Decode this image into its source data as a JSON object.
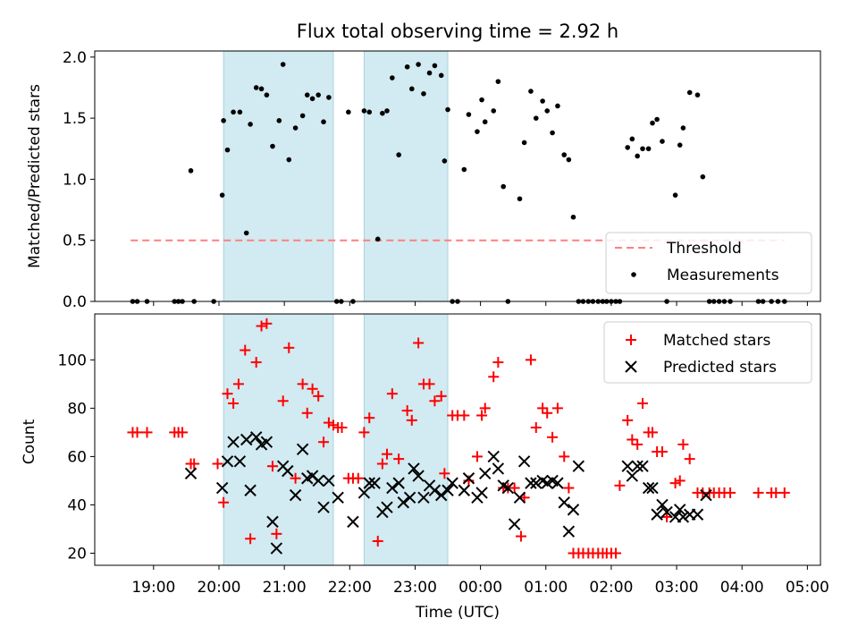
{
  "chart_data": [
    {
      "type": "scatter",
      "title": "Flux total observing time = 2.92 h",
      "xlabel": "",
      "ylabel": "Matched/Predicted stars",
      "xlim": [
        18.1,
        5.2
      ],
      "ylim": [
        0,
        2.05
      ],
      "yticks": [
        0.0,
        0.5,
        1.0,
        1.5,
        2.0
      ],
      "ytick_labels": [
        "0.0",
        "0.5",
        "1.0",
        "1.5",
        "2.0"
      ],
      "shaded_intervals_hours": [
        [
          20.07,
          21.75
        ],
        [
          22.22,
          23.5
        ]
      ],
      "threshold": 0.5,
      "threshold_range_hours": [
        18.65,
        4.65
      ],
      "legend": {
        "location": "lower-right",
        "entries": [
          "Threshold",
          "Measurements"
        ]
      },
      "series": [
        {
          "name": "Measurements",
          "x": [
            18.68,
            18.75,
            18.9,
            19.32,
            19.38,
            19.44,
            19.57,
            19.62,
            19.92,
            20.05,
            20.07,
            20.13,
            20.22,
            20.32,
            20.42,
            20.48,
            20.57,
            20.65,
            20.73,
            20.82,
            20.92,
            20.98,
            21.07,
            21.17,
            21.28,
            21.35,
            21.43,
            21.52,
            21.6,
            21.68,
            21.8,
            21.87,
            21.98,
            22.05,
            22.22,
            22.3,
            22.43,
            22.5,
            22.57,
            22.65,
            22.75,
            22.88,
            22.95,
            23.05,
            23.13,
            23.22,
            23.3,
            23.4,
            23.45,
            23.5,
            23.57,
            23.65,
            23.75,
            23.82,
            23.95,
            24.02,
            24.07,
            24.2,
            24.27,
            24.35,
            24.42,
            24.6,
            24.67,
            24.77,
            24.85,
            24.95,
            25.02,
            25.1,
            25.18,
            25.28,
            25.35,
            25.42,
            25.5,
            25.57,
            25.65,
            25.72,
            25.8,
            25.87,
            25.93,
            26.0,
            26.07,
            26.13,
            26.25,
            26.32,
            26.4,
            26.48,
            26.57,
            26.63,
            26.7,
            26.78,
            26.85,
            26.98,
            27.05,
            27.1,
            27.2,
            27.32,
            27.4,
            27.5,
            27.57,
            27.65,
            27.73,
            27.82,
            28.25,
            28.32,
            28.45,
            28.55,
            28.65
          ],
          "y": [
            0,
            0,
            0,
            0,
            0,
            0,
            1.07,
            0,
            0,
            0.87,
            1.48,
            1.24,
            1.55,
            1.55,
            0.56,
            1.45,
            1.75,
            1.74,
            1.69,
            1.27,
            1.48,
            1.94,
            1.16,
            1.42,
            1.52,
            1.69,
            1.66,
            1.69,
            1.47,
            1.67,
            0,
            0,
            1.55,
            0,
            1.56,
            1.55,
            0.51,
            1.54,
            1.56,
            1.83,
            1.2,
            1.92,
            1.74,
            1.94,
            1.7,
            1.87,
            1.93,
            1.85,
            1.15,
            1.57,
            0,
            0,
            1.08,
            1.53,
            1.39,
            1.65,
            1.47,
            1.56,
            1.8,
            0.94,
            0,
            0.84,
            1.3,
            1.72,
            1.5,
            1.64,
            1.56,
            1.38,
            1.6,
            1.2,
            1.16,
            0.69,
            0,
            0,
            0,
            0,
            0,
            0,
            0,
            0,
            0,
            0,
            1.26,
            1.33,
            1.19,
            1.25,
            1.25,
            1.46,
            1.49,
            1.31,
            0,
            0.87,
            1.28,
            1.42,
            1.71,
            1.69,
            1.02,
            0,
            0,
            0,
            0,
            0,
            0,
            0,
            0,
            0,
            0
          ]
        }
      ]
    },
    {
      "type": "scatter",
      "title": "",
      "xlabel": "Time (UTC)",
      "ylabel": "Count",
      "xlim": [
        18.1,
        5.2
      ],
      "ylim": [
        15,
        119
      ],
      "yticks": [
        20,
        40,
        60,
        80,
        100
      ],
      "ytick_labels": [
        "20",
        "40",
        "60",
        "80",
        "100"
      ],
      "xticks_hours": [
        19,
        20,
        21,
        22,
        23,
        24,
        25,
        26,
        27,
        28,
        29
      ],
      "xtick_labels": [
        "19:00",
        "20:00",
        "21:00",
        "22:00",
        "23:00",
        "00:00",
        "01:00",
        "02:00",
        "03:00",
        "04:00",
        "05:00"
      ],
      "shaded_intervals_hours": [
        [
          20.07,
          21.75
        ],
        [
          22.22,
          23.5
        ]
      ],
      "legend": {
        "location": "top-right",
        "entries": [
          "Matched stars",
          "Predicted stars"
        ]
      },
      "series": [
        {
          "name": "Matched stars",
          "color": "#ff0000",
          "x": [
            18.68,
            18.75,
            18.9,
            19.32,
            19.38,
            19.44,
            19.57,
            19.62,
            19.98,
            20.07,
            20.13,
            20.22,
            20.3,
            20.4,
            20.48,
            20.57,
            20.65,
            20.73,
            20.82,
            20.88,
            20.98,
            21.07,
            21.17,
            21.28,
            21.35,
            21.43,
            21.52,
            21.6,
            21.68,
            21.75,
            21.82,
            21.88,
            21.98,
            22.05,
            22.13,
            22.22,
            22.3,
            22.43,
            22.5,
            22.57,
            22.65,
            22.75,
            22.88,
            22.95,
            23.05,
            23.13,
            23.22,
            23.3,
            23.4,
            23.45,
            23.57,
            23.65,
            23.75,
            23.82,
            23.95,
            24.02,
            24.07,
            24.2,
            24.27,
            24.35,
            24.42,
            24.52,
            24.62,
            24.67,
            24.77,
            24.85,
            24.95,
            25.02,
            25.1,
            25.18,
            25.28,
            25.35,
            25.42,
            25.5,
            25.57,
            25.65,
            25.72,
            25.8,
            25.87,
            25.93,
            26.0,
            26.07,
            26.13,
            26.25,
            26.32,
            26.4,
            26.48,
            26.57,
            26.63,
            26.7,
            26.78,
            26.85,
            26.98,
            27.05,
            27.1,
            27.2,
            27.32,
            27.4,
            27.5,
            27.57,
            27.65,
            27.73,
            27.82,
            28.25,
            28.45,
            28.52,
            28.65
          ],
          "y": [
            70,
            70,
            70,
            70,
            70,
            70,
            57,
            57,
            57,
            41,
            86,
            82,
            90,
            104,
            26,
            99,
            114,
            115,
            56,
            28,
            83,
            105,
            51,
            90,
            78,
            88,
            85,
            66,
            74,
            73,
            72,
            72,
            51,
            51,
            51,
            70,
            76,
            25,
            57,
            61,
            86,
            59,
            79,
            75,
            107,
            90,
            90,
            83,
            85,
            53,
            77,
            77,
            77,
            50,
            60,
            77,
            80,
            93,
            99,
            47,
            47,
            47,
            27,
            43,
            100,
            72,
            80,
            78,
            68,
            80,
            60,
            47,
            20,
            20,
            20,
            20,
            20,
            20,
            20,
            20,
            20,
            20,
            48,
            75,
            67,
            65,
            82,
            70,
            70,
            62,
            62,
            35,
            49,
            50,
            65,
            59,
            45,
            45,
            45,
            45,
            45,
            45,
            45,
            45,
            45,
            45,
            45
          ]
        },
        {
          "name": "Predicted stars",
          "color": "#000000",
          "x": [
            19.57,
            20.05,
            20.13,
            20.22,
            20.32,
            20.42,
            20.48,
            20.57,
            20.65,
            20.73,
            20.82,
            20.88,
            20.98,
            21.05,
            21.17,
            21.28,
            21.35,
            21.43,
            21.52,
            21.6,
            21.68,
            21.82,
            22.05,
            22.22,
            22.3,
            22.38,
            22.5,
            22.57,
            22.65,
            22.75,
            22.82,
            22.92,
            22.98,
            23.05,
            23.13,
            23.22,
            23.3,
            23.4,
            23.5,
            23.57,
            23.75,
            23.82,
            23.95,
            24.02,
            24.07,
            24.2,
            24.27,
            24.35,
            24.42,
            24.52,
            24.6,
            24.67,
            24.77,
            24.85,
            24.95,
            25.02,
            25.1,
            25.18,
            25.28,
            25.35,
            25.42,
            25.5,
            26.25,
            26.32,
            26.4,
            26.48,
            26.57,
            26.63,
            26.7,
            26.78,
            26.85,
            26.98,
            27.05,
            27.1,
            27.2,
            27.32,
            27.45
          ],
          "y": [
            53,
            47,
            58,
            66,
            58,
            67,
            46,
            68,
            65,
            66,
            33,
            22,
            56,
            54,
            44,
            63,
            51,
            52,
            50,
            39,
            50,
            43,
            33,
            45,
            49,
            49,
            37,
            39,
            47,
            49,
            41,
            43,
            55,
            52,
            43,
            48,
            46,
            44,
            46,
            49,
            46,
            51,
            43,
            45,
            53,
            60,
            55,
            48,
            47,
            32,
            43,
            58,
            49,
            49,
            50,
            49,
            50,
            49,
            41,
            29,
            38,
            56,
            56,
            52,
            56,
            56,
            47,
            47,
            36,
            40,
            37,
            35,
            38,
            35,
            36,
            36,
            44
          ],
          "predicted_minus_matched_note": ""
        }
      ]
    }
  ]
}
